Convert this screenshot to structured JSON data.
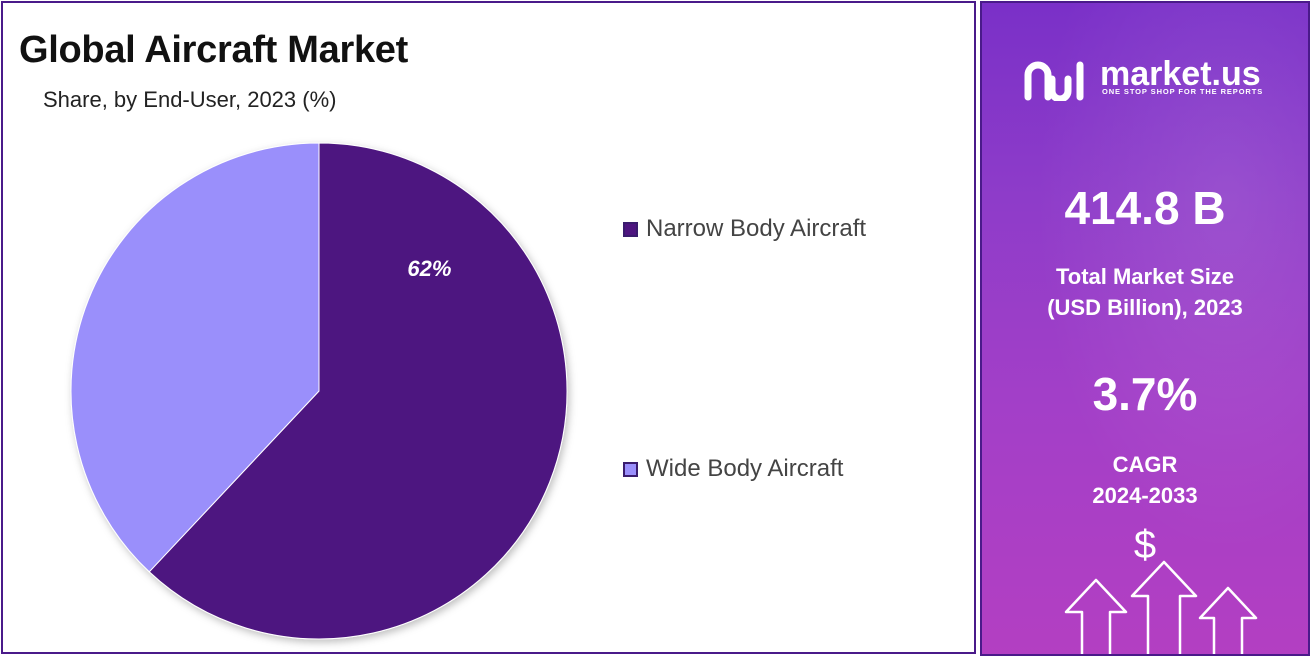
{
  "chart_data": {
    "type": "pie",
    "title": "Global Aircraft Market",
    "subtitle": "Share, by End-User, 2023 (%)",
    "categories": [
      "Narrow Body Aircraft",
      "Wide Body Aircraft"
    ],
    "values": [
      62,
      38
    ],
    "data_labels": [
      "62%",
      ""
    ],
    "colors": [
      "#4e1580",
      "#9a8ffb"
    ],
    "legend_position": "right"
  },
  "side_panel": {
    "brand": {
      "name": "market.us",
      "tagline": "ONE STOP SHOP FOR THE REPORTS"
    },
    "market_size": {
      "value": "414.8 B",
      "label": "Total Market Size\n (USD Billion), 2023"
    },
    "cagr": {
      "value": "3.7%",
      "label": "CAGR\n2024-2033"
    },
    "currency_symbol": "$",
    "icons": [
      "market-us-logo-icon",
      "dollar-icon",
      "growth-arrows-icon"
    ]
  }
}
